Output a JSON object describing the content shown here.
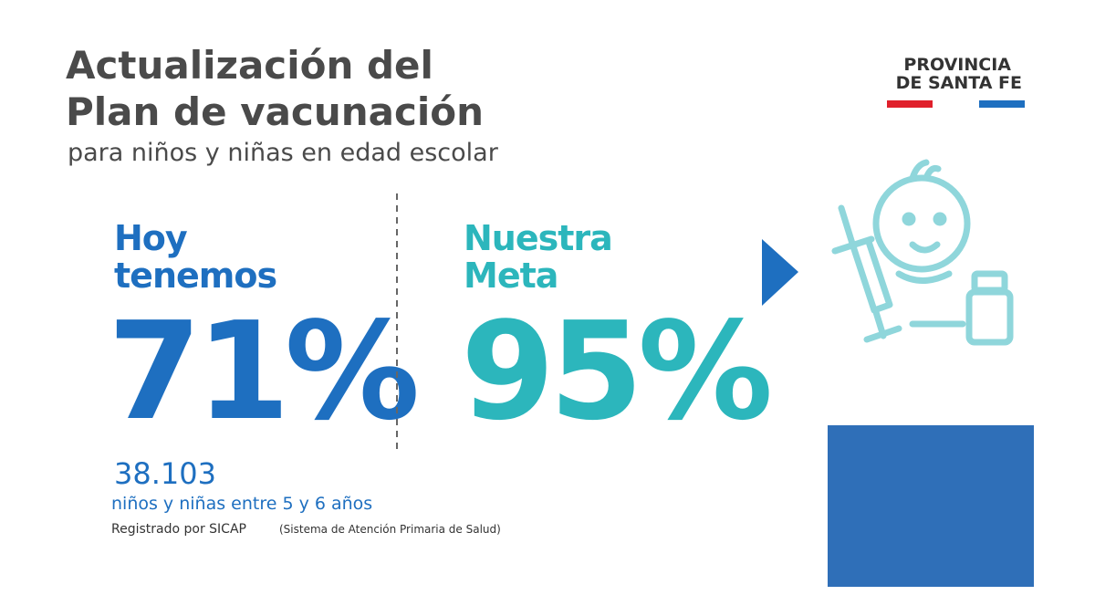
{
  "header": {
    "title_lines": [
      "Actualización del",
      "Plan de vacunación"
    ],
    "subtitle": "para niños y niñas en edad escolar"
  },
  "logo": {
    "lines": [
      "PROVINCIA",
      "DE SANTA FE"
    ]
  },
  "current": {
    "label_lines": [
      "Hoy",
      "tenemos"
    ],
    "value": "71%",
    "count": "38.103",
    "count_description": "niños y niñas entre 5 y 6 años",
    "source": "Registrado por SICAP",
    "source_detail": "(Sistema de Atención Primaria de Salud)"
  },
  "goal": {
    "label_lines": [
      "Nuestra",
      "Meta"
    ],
    "value": "95%"
  }
}
